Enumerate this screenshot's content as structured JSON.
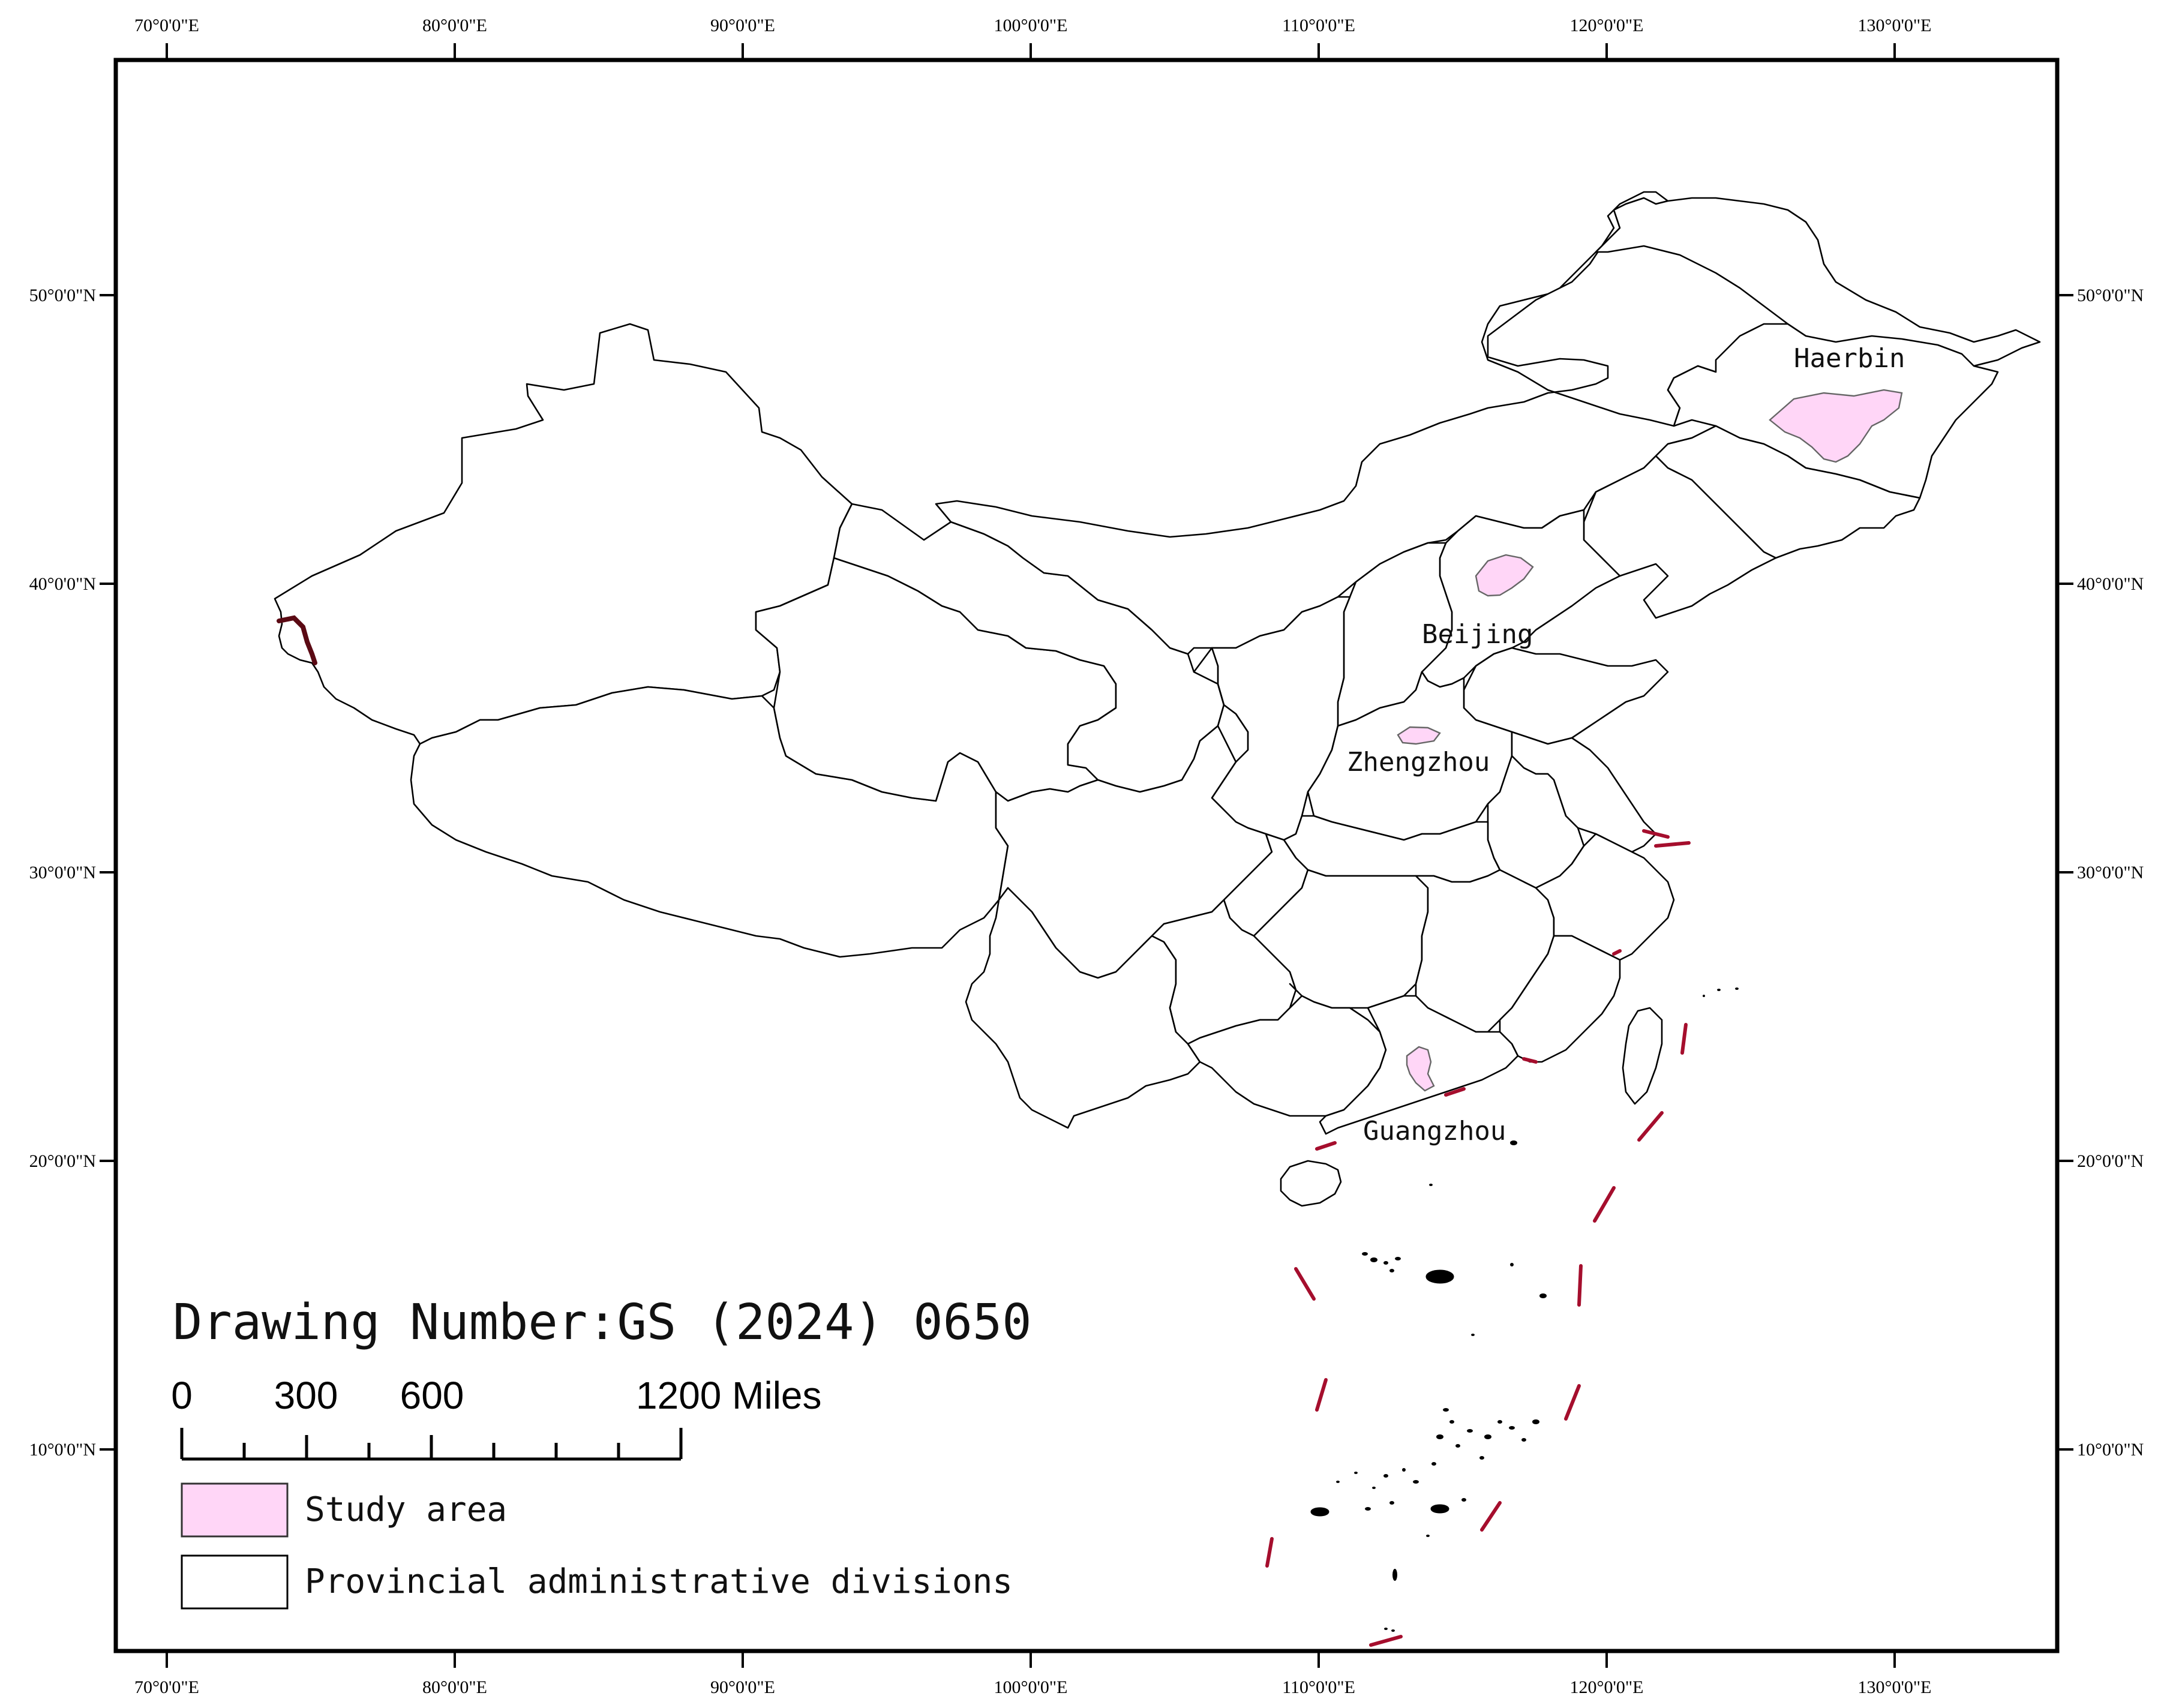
{
  "map": {
    "longitude_ticks": [
      "70°0'0\"E",
      "80°0'0\"E",
      "90°0'0\"E",
      "100°0'0\"E",
      "110°0'0\"E",
      "120°0'0\"E",
      "130°0'0\"E"
    ],
    "latitude_ticks": [
      "50°0'0\"N",
      "40°0'0\"N",
      "30°0'0\"N",
      "20°0'0\"N",
      "10°0'0\"N"
    ],
    "cities": {
      "haerbin": "Haerbin",
      "beijing": "Beijing",
      "zhengzhou": "Zhengzhou",
      "guangzhou": "Guangzhou"
    },
    "drawing_number": "Drawing Number:GS (2024) 0650",
    "scale_bar": {
      "labels": [
        "0",
        "300",
        "600",
        "1200 Miles"
      ]
    },
    "legend": {
      "study_area": "Study area",
      "provincial": "Provincial administrative divisions"
    },
    "colors": {
      "study_area_fill": "#ffd6f7",
      "boundary_dash": "#a50e2d",
      "province_stroke": "#000000"
    }
  }
}
